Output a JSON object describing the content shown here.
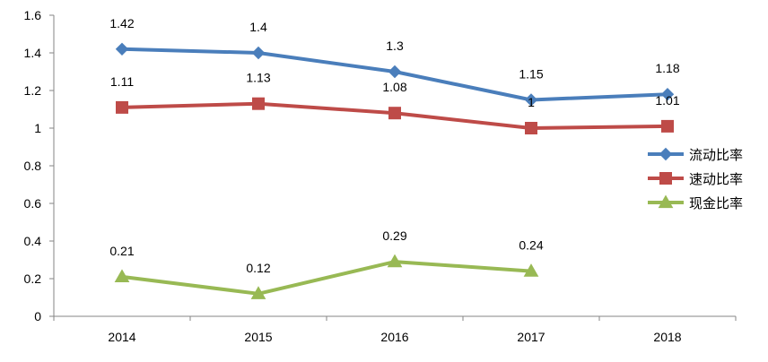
{
  "chart_data": {
    "type": "line",
    "title": "",
    "xlabel": "",
    "ylabel": "",
    "categories": [
      "2014",
      "2015",
      "2016",
      "2017",
      "2018"
    ],
    "ylim": [
      0,
      1.6
    ],
    "yticks": [
      "0",
      "0.2",
      "0.4",
      "0.6",
      "0.8",
      "1",
      "1.2",
      "1.4",
      "1.6"
    ],
    "grid": false,
    "legend_position": "right",
    "series": [
      {
        "name": "流动比率",
        "values": [
          1.42,
          1.4,
          1.3,
          1.15,
          1.18
        ],
        "labels": [
          "1.42",
          "1.4",
          "1.3",
          "1.15",
          "1.18"
        ],
        "color": "#4a7ebb",
        "marker": "diamond"
      },
      {
        "name": "速动比率",
        "values": [
          1.11,
          1.13,
          1.08,
          1,
          1.01
        ],
        "labels": [
          "1.11",
          "1.13",
          "1.08",
          "1",
          "1.01"
        ],
        "color": "#be4b48",
        "marker": "square"
      },
      {
        "name": "现金比率",
        "values": [
          0.21,
          0.12,
          0.29,
          0.24,
          null
        ],
        "labels": [
          "0.21",
          "0.12",
          "0.29",
          "0.24",
          null
        ],
        "color": "#98b954",
        "marker": "triangle"
      }
    ]
  }
}
